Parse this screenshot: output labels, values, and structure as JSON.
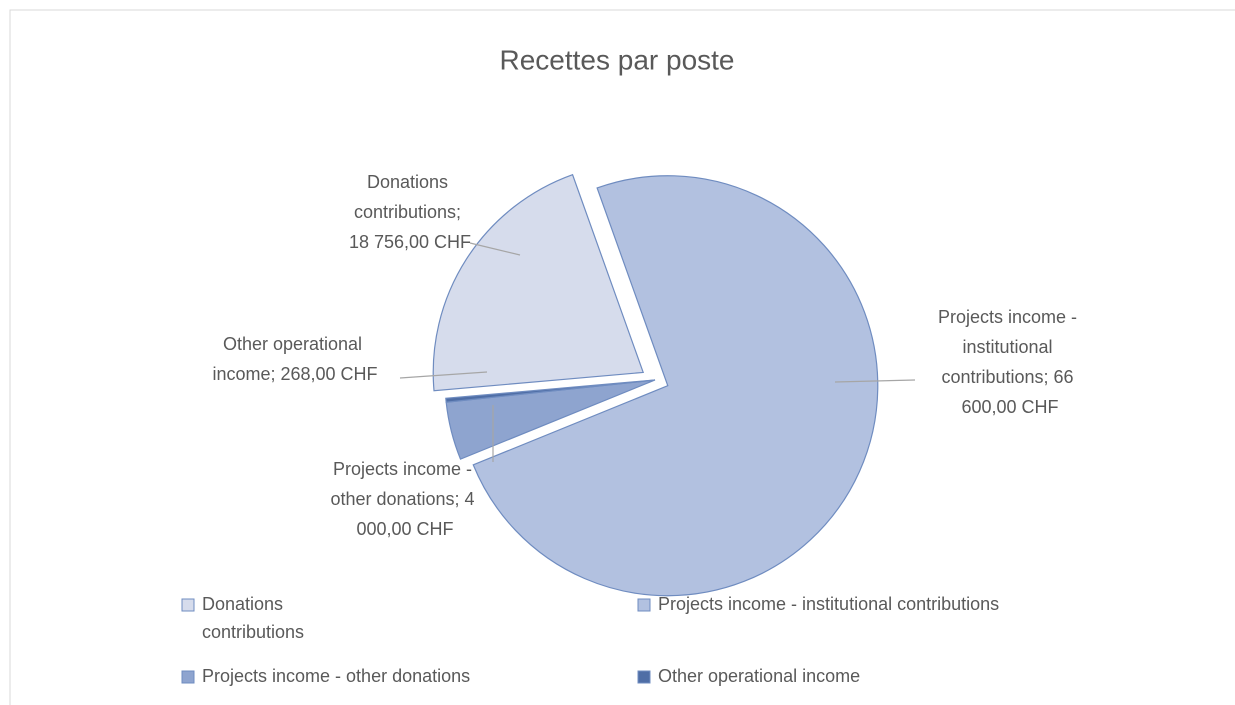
{
  "chart_data": {
    "type": "pie",
    "title": "Recettes par poste",
    "categories": [
      "Donations contributions",
      "Projects income - institutional contributions",
      "Projects income - other donations",
      "Other operational income"
    ],
    "values": [
      18756,
      66600,
      4000,
      268
    ],
    "value_labels": [
      "Donations contributions; 18 756,00 CHF",
      "Projects income - institutional contributions; 66 600,00 CHF",
      "Projects income - other donations; 4 000,00 CHF",
      "Other operational income; 268,00 CHF"
    ],
    "colors": [
      "#d6dcec",
      "#b2c1e0",
      "#8ea4cf",
      "#4f6ea6"
    ],
    "legend": "bottom"
  }
}
